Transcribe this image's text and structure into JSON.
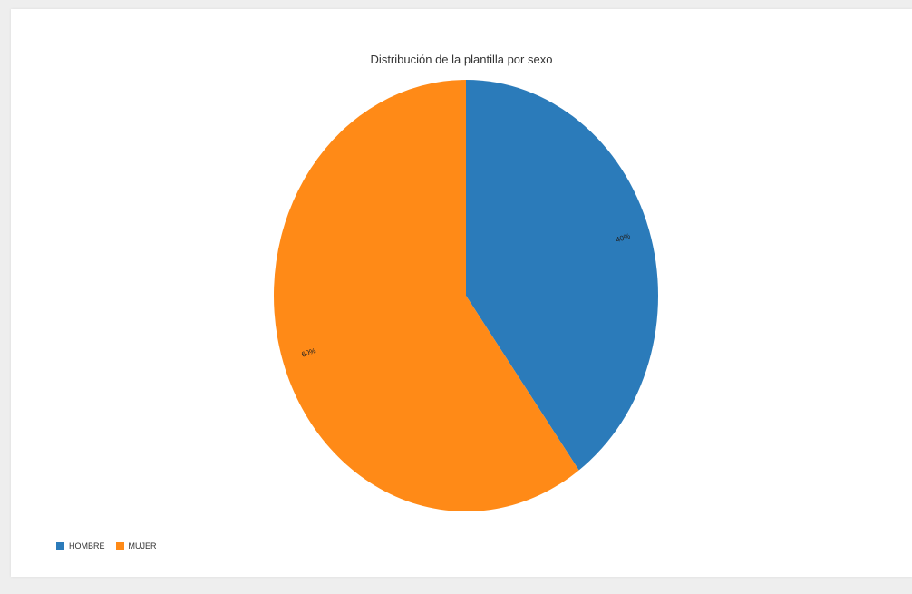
{
  "chart_data": {
    "type": "pie",
    "title": "Distribución de la plantilla por sexo",
    "slices": [
      {
        "name": "HOMBRE",
        "value": 40,
        "label": "40%",
        "color": "#2b7bba"
      },
      {
        "name": "MUJER",
        "value": 60,
        "label": "60%",
        "color": "#ff8a17"
      }
    ],
    "start_angle": "12 o'clock, clockwise",
    "legend_position": "bottom-left"
  }
}
